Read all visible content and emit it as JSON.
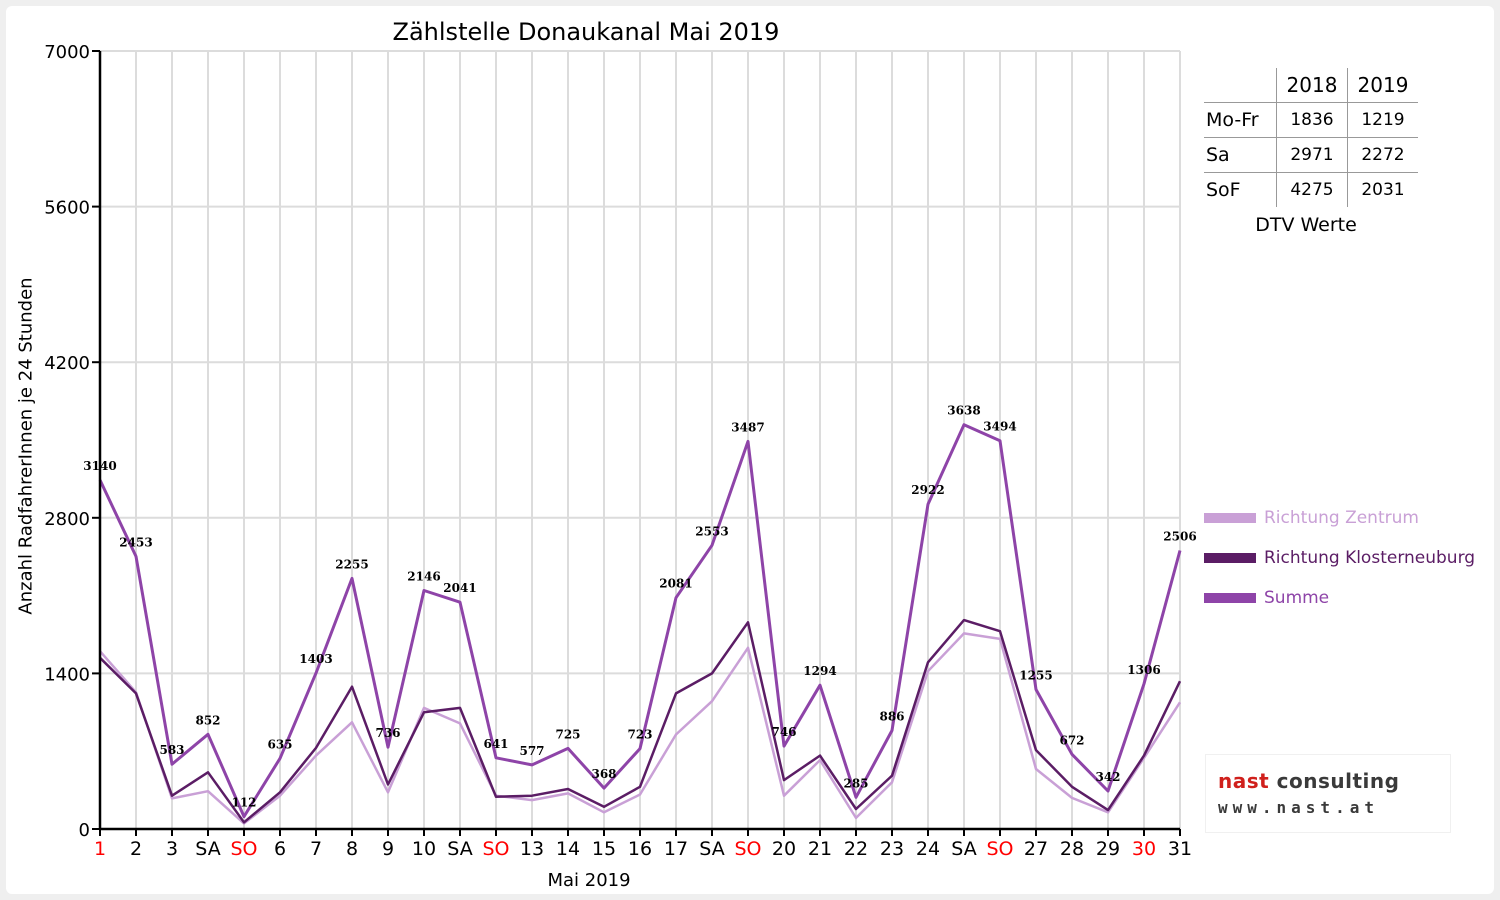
{
  "chart_data": {
    "type": "line",
    "title": "Zählstelle Donaukanal Mai 2019",
    "xlabel": "Mai 2019",
    "ylabel": "Anzahl RadfahrerInnen je 24 Stunden",
    "ylim": [
      0,
      7000
    ],
    "yticks": [
      0,
      1400,
      2800,
      4200,
      5600,
      7000
    ],
    "categories": [
      "1",
      "2",
      "3",
      "SA",
      "SO",
      "6",
      "7",
      "8",
      "9",
      "10",
      "SA",
      "SO",
      "13",
      "14",
      "15",
      "16",
      "17",
      "SA",
      "SO",
      "20",
      "21",
      "22",
      "23",
      "24",
      "SA",
      "SO",
      "27",
      "28",
      "29",
      "30",
      "31"
    ],
    "category_colors": [
      "#ff0000",
      "#000000",
      "#000000",
      "#000000",
      "#ff0000",
      "#000000",
      "#000000",
      "#000000",
      "#000000",
      "#000000",
      "#000000",
      "#ff0000",
      "#000000",
      "#000000",
      "#000000",
      "#000000",
      "#000000",
      "#000000",
      "#ff0000",
      "#000000",
      "#000000",
      "#000000",
      "#000000",
      "#000000",
      "#000000",
      "#ff0000",
      "#000000",
      "#000000",
      "#000000",
      "#ff0000",
      "#000000"
    ],
    "grid": true,
    "legend_position": "right",
    "series": [
      {
        "name": "Richtung Zentrum",
        "color": "#c9a0d6",
        "values": [
          1600,
          1230,
          275,
          340,
          50,
          300,
          660,
          960,
          330,
          1090,
          950,
          300,
          260,
          320,
          150,
          310,
          850,
          1150,
          1630,
          300,
          620,
          100,
          420,
          1420,
          1760,
          1710,
          540,
          280,
          150,
          640,
          1140
        ]
      },
      {
        "name": "Richtung Klosterneuburg",
        "color": "#5b1d65",
        "values": [
          1540,
          1220,
          300,
          510,
          60,
          330,
          730,
          1280,
          400,
          1050,
          1090,
          290,
          300,
          360,
          200,
          380,
          1220,
          1400,
          1860,
          440,
          660,
          180,
          480,
          1500,
          1880,
          1780,
          710,
          380,
          170,
          660,
          1330
        ]
      },
      {
        "name": "Summe",
        "color": "#8e44a8",
        "values": [
          3140,
          2453,
          583,
          852,
          112,
          635,
          1403,
          2255,
          736,
          2146,
          2041,
          641,
          577,
          725,
          368,
          723,
          2081,
          2553,
          3487,
          746,
          1294,
          285,
          886,
          2922,
          3638,
          3494,
          1255,
          672,
          342,
          1306,
          2506
        ]
      }
    ],
    "data_labels": [
      "3140",
      "2453",
      "583",
      "852",
      "112",
      "635",
      "1403",
      "2255",
      "736",
      "2146",
      "2041",
      "641",
      "577",
      "725",
      "368",
      "723",
      "2081",
      "2553",
      "3487",
      "746",
      "1294",
      "285",
      "886",
      "2922",
      "3638",
      "3494",
      "1255",
      "672",
      "342",
      "1306",
      "2506"
    ]
  },
  "dtv_table": {
    "headers": [
      "",
      "2018",
      "2019"
    ],
    "rows": [
      {
        "label": "Mo-Fr",
        "v2018": "1836",
        "v2019": "1219"
      },
      {
        "label": "Sa",
        "v2018": "2971",
        "v2019": "2272"
      },
      {
        "label": "SoF",
        "v2018": "4275",
        "v2019": "2031"
      }
    ],
    "caption": "DTV Werte"
  },
  "logo": {
    "part1": "nast",
    "part2": " consulting",
    "url": "www.nast.at",
    "color_red": "#d0201c",
    "color_dark": "#3a3a3a"
  }
}
